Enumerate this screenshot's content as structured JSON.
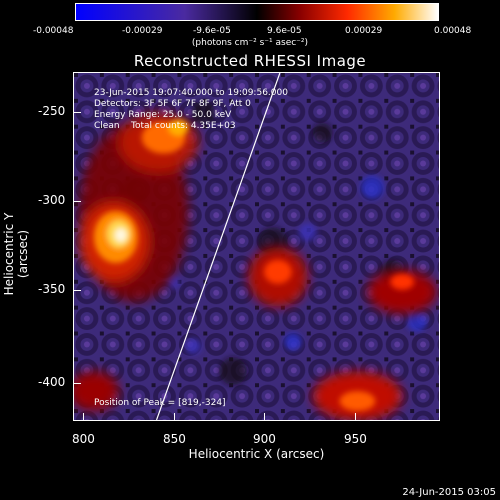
{
  "colors": {
    "background": "#000000",
    "foreground": "#ffffff",
    "limb_line": "#ffffff"
  },
  "colorbar": {
    "ticks": [
      "-0.00048",
      "-0.00029",
      "-9.6e-05",
      "9.6e-05",
      "0.00029",
      "0.00048"
    ],
    "unit": "(photons cm⁻² s⁻¹ asec⁻²)"
  },
  "title": "Reconstructed RHESSI Image",
  "info": {
    "time_range": "23-Jun-2015 19:07:40.000 to 19:09:56.000",
    "detectors": "Detectors: 3F 5F 6F 7F 8F 9F, Att 0",
    "energy": "Energy Range: 25.0 - 50.0 keV",
    "algorithm": "Clean    Total counts: 4.35E+03",
    "peak": "Position of Peak = [819,-324]"
  },
  "axes": {
    "x_label": "Heliocentric X (arcsec)",
    "y_label": "Heliocentric Y (arcsec)",
    "x_ticks": [
      "800",
      "850",
      "900",
      "950"
    ],
    "y_ticks": [
      "-250",
      "-300",
      "-350",
      "-400"
    ],
    "x_range": [
      800,
      990
    ],
    "y_range": [
      -422,
      -241
    ]
  },
  "footer_date": "24-Jun-2015 03:05"
}
